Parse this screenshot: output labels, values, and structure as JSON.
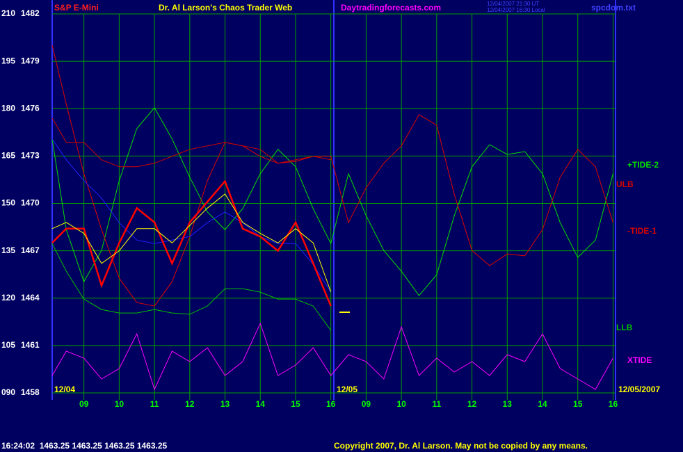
{
  "chart_data": {
    "type": "line",
    "title": "Dr. Al Larson's Chaos Trader Web",
    "instrument": "S&P E-Mini",
    "site": "Daytradingforecasts.com",
    "timestamps": [
      "12/04/2007 21:30 UT",
      "12/04/2007 16:30 Local"
    ],
    "file": "spcdom.txt",
    "dates": [
      "12/04",
      "12/05",
      "12/05/2007"
    ],
    "quote": "16:24:02  1463.25 1463.25 1463.25 1463.25",
    "copyright": "Copyright 2007, Dr. Al Larson. May not be copied by any means.",
    "x": [
      8.1,
      8.5,
      9,
      9.5,
      10,
      10.5,
      11,
      11.5,
      12,
      12.5,
      13,
      13.5,
      14,
      14.5,
      15,
      15.5,
      16,
      16.5,
      17,
      17.5,
      18,
      18.5,
      19,
      19.5,
      20,
      20.5,
      21,
      21.5,
      22,
      22.5,
      23,
      23.5,
      24
    ],
    "xlim": [
      8.1,
      24.07
    ],
    "xticks": [
      {
        "value": 9,
        "label": "09"
      },
      10,
      11,
      12,
      13,
      14,
      15,
      16,
      {
        "value": 17,
        "label": "09"
      },
      {
        "value": 18,
        "label": "10"
      },
      {
        "value": 19,
        "label": "11"
      },
      {
        "value": 20,
        "label": "12"
      },
      {
        "value": 21,
        "label": "13"
      },
      {
        "value": 22,
        "label": "14"
      },
      {
        "value": 23,
        "label": "15"
      },
      {
        "value": 24,
        "label": "16"
      }
    ],
    "ylim": [
      90,
      210
    ],
    "yticks": [
      210,
      195,
      180,
      165,
      150,
      135,
      120,
      105,
      {
        "value": 90,
        "label": "090"
      }
    ],
    "y2lim": [
      1458,
      1482
    ],
    "y2ticks": [
      1482,
      1479,
      1476,
      1473,
      1470,
      1467,
      1464,
      1461,
      1458
    ],
    "grid": true,
    "series": [
      {
        "name": "+TIDE-2",
        "color": "#00e000",
        "values": [
          170.4,
          141.7,
          125.2,
          135.1,
          157.2,
          173.7,
          180.3,
          170.4,
          158.3,
          147.3,
          141.7,
          148.3,
          159.4,
          167.1,
          161.6,
          148.3,
          137.3,
          159.4,
          146.1,
          135.1,
          128.5,
          120.8,
          127.4,
          146.1,
          161.6,
          168.6,
          165.5,
          166.4,
          159.4,
          143.9,
          132.9,
          138.4,
          159.4
        ]
      },
      {
        "name": "-TIDE-1",
        "color": "#e00000",
        "values": [
          200.1,
          181.4,
          159.4,
          141.7,
          126.3,
          118.6,
          117.5,
          125.2,
          139.5,
          157.2,
          169.3,
          168.2,
          164.9,
          162.7,
          163.3,
          164.9,
          164.9,
          143.9,
          155.0,
          162.7,
          168.2,
          178.1,
          174.8,
          152.8,
          135.1,
          130.3,
          134.0,
          133.4,
          141.7,
          158.3,
          167.1,
          161.6,
          143.9
        ]
      },
      {
        "name": "ULB",
        "color": "#d00000",
        "values": [
          177.0,
          169.3,
          169.3,
          163.8,
          161.6,
          161.6,
          162.7,
          164.9,
          167.1,
          168.2,
          169.3,
          168.2,
          167.1,
          162.7,
          163.8,
          164.9,
          163.8,
          null,
          null,
          null,
          null,
          null,
          null,
          null,
          null,
          null,
          null,
          null,
          null,
          null,
          null,
          null,
          null
        ]
      },
      {
        "name": "LLB",
        "color": "#00c000",
        "values": [
          137.3,
          128.5,
          119.7,
          116.4,
          115.3,
          115.3,
          116.4,
          115.3,
          114.9,
          117.5,
          123.0,
          123.0,
          121.9,
          119.7,
          119.7,
          117.5,
          109.8,
          null,
          null,
          null,
          null,
          null,
          null,
          null,
          null,
          null,
          null,
          null,
          null,
          null,
          null,
          null,
          null
        ]
      },
      {
        "name": "XTIDE",
        "color": "#ff00ff",
        "values": [
          95.5,
          103.2,
          101.0,
          94.4,
          97.7,
          108.7,
          91.1,
          103.2,
          99.9,
          104.3,
          95.5,
          99.9,
          112.0,
          95.5,
          98.8,
          104.3,
          95.5,
          102.1,
          99.9,
          94.4,
          110.9,
          95.5,
          101.0,
          96.6,
          99.9,
          95.5,
          102.1,
          99.9,
          108.7,
          97.7,
          94.4,
          91.1,
          101.0
        ]
      },
      {
        "color": "#2020ff",
        "values": [
          170.4,
          163.8,
          157.2,
          151.7,
          143.9,
          138.4,
          137.3,
          138.4,
          139.5,
          143.9,
          147.3,
          143.9,
          139.5,
          137.3,
          137.3,
          130.7,
          121.9,
          null,
          null,
          null,
          null,
          null,
          null,
          null,
          null,
          null,
          null,
          null,
          null,
          null,
          null,
          null,
          null
        ]
      },
      {
        "color": "#ff0000",
        "axis": "y2",
        "values": [
          1467.5,
          1468.4,
          1468.4,
          1464.8,
          1467.5,
          1469.7,
          1468.8,
          1466.2,
          1468.8,
          1470.1,
          1471.4,
          1468.4,
          1467.9,
          1467.0,
          1468.8,
          1466.2,
          1463.5,
          null,
          null,
          null,
          null,
          null,
          null,
          null,
          null,
          null,
          null,
          null,
          null,
          null,
          null,
          null,
          null
        ]
      },
      {
        "color": "#ffff00",
        "axis": "y2",
        "values": [
          1468.4,
          1468.8,
          1468.1,
          1466.2,
          1467.0,
          1468.4,
          1468.4,
          1467.5,
          1468.6,
          1469.7,
          1470.6,
          1468.8,
          1468.1,
          1467.5,
          1468.4,
          1467.5,
          1464.4,
          null,
          null,
          null,
          null,
          null,
          null,
          null,
          null,
          null,
          null,
          null,
          null,
          null,
          null,
          null,
          null
        ]
      }
    ]
  }
}
